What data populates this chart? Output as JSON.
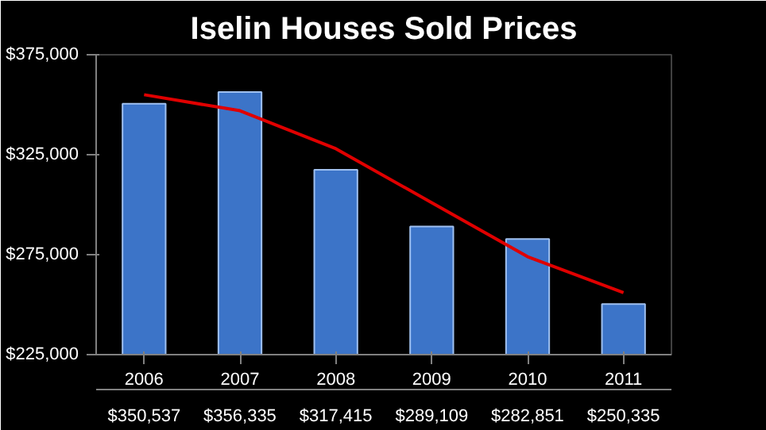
{
  "chart_data": {
    "type": "bar",
    "title": "Iselin Houses Sold Prices",
    "categories": [
      "2006",
      "2007",
      "2008",
      "2009",
      "2010",
      "2011"
    ],
    "series": [
      {
        "color": "#3c74c8",
        "values": [
          350537,
          356335,
          317415,
          289109,
          282851,
          250335
        ],
        "value_labels": [
          "$350,537",
          "$356,335",
          "$317,415",
          "$289,109",
          "$282,851",
          "$250,335"
        ]
      },
      {
        "type": "line",
        "color": "#e00000",
        "values": [
          355000,
          347000,
          328000,
          301000,
          274000,
          256000
        ]
      }
    ],
    "ylim": [
      225000,
      375000
    ],
    "yticks": [
      {
        "value": 225000,
        "label": "$225,000"
      },
      {
        "value": 275000,
        "label": "$275,000"
      },
      {
        "value": 325000,
        "label": "$325,000"
      },
      {
        "value": 375000,
        "label": "$375,000"
      }
    ],
    "grid": false
  }
}
